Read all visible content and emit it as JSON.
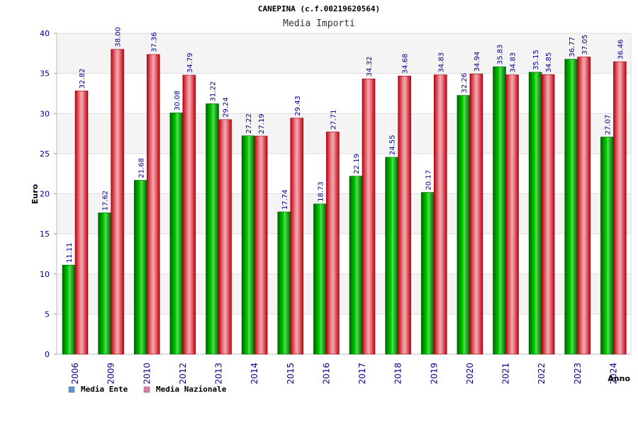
{
  "chart_data": {
    "type": "bar",
    "title": "CANEPINA (c.f.00219620564)",
    "subtitle": "Media Importi",
    "xlabel": "Anno",
    "ylabel": "Euro",
    "ylim": [
      0,
      40
    ],
    "yticks": [
      0,
      5,
      10,
      15,
      20,
      25,
      30,
      35,
      40
    ],
    "grid": true,
    "legend_position": "bottom-left",
    "categories": [
      "2006",
      "2009",
      "2010",
      "2012",
      "2013",
      "2014",
      "2015",
      "2016",
      "2017",
      "2018",
      "2019",
      "2020",
      "2021",
      "2022",
      "2023",
      "2024"
    ],
    "series": [
      {
        "name": "Media Ente",
        "color": "#00b000",
        "legend_color": "#5a9bd5",
        "values": [
          11.11,
          17.62,
          21.68,
          30.08,
          31.22,
          27.22,
          17.74,
          18.73,
          22.19,
          24.55,
          20.17,
          32.26,
          35.83,
          35.15,
          36.77,
          27.07
        ],
        "labels": [
          "11.11",
          "17.62",
          "21.68",
          "30.08",
          "31.22",
          "27.22",
          "17.74",
          "18.73",
          "22.19",
          "24.55",
          "20.17",
          "32.26",
          "35.83",
          "35.15",
          "36.77",
          "27.07"
        ]
      },
      {
        "name": "Media Nazionale",
        "color": "#e8101a",
        "legend_color": "#e07aa8",
        "values": [
          32.82,
          38.0,
          37.36,
          34.79,
          29.24,
          27.19,
          29.43,
          27.71,
          34.32,
          34.68,
          34.83,
          34.94,
          34.83,
          34.85,
          37.05,
          36.46
        ],
        "labels": [
          "32.82",
          "38.00",
          "37.36",
          "34.79",
          "29.24",
          "27.19",
          "29.43",
          "27.71",
          "34.32",
          "34.68",
          "34.83",
          "34.94",
          "34.83",
          "34.85",
          "37.05",
          "36.46"
        ]
      }
    ]
  }
}
